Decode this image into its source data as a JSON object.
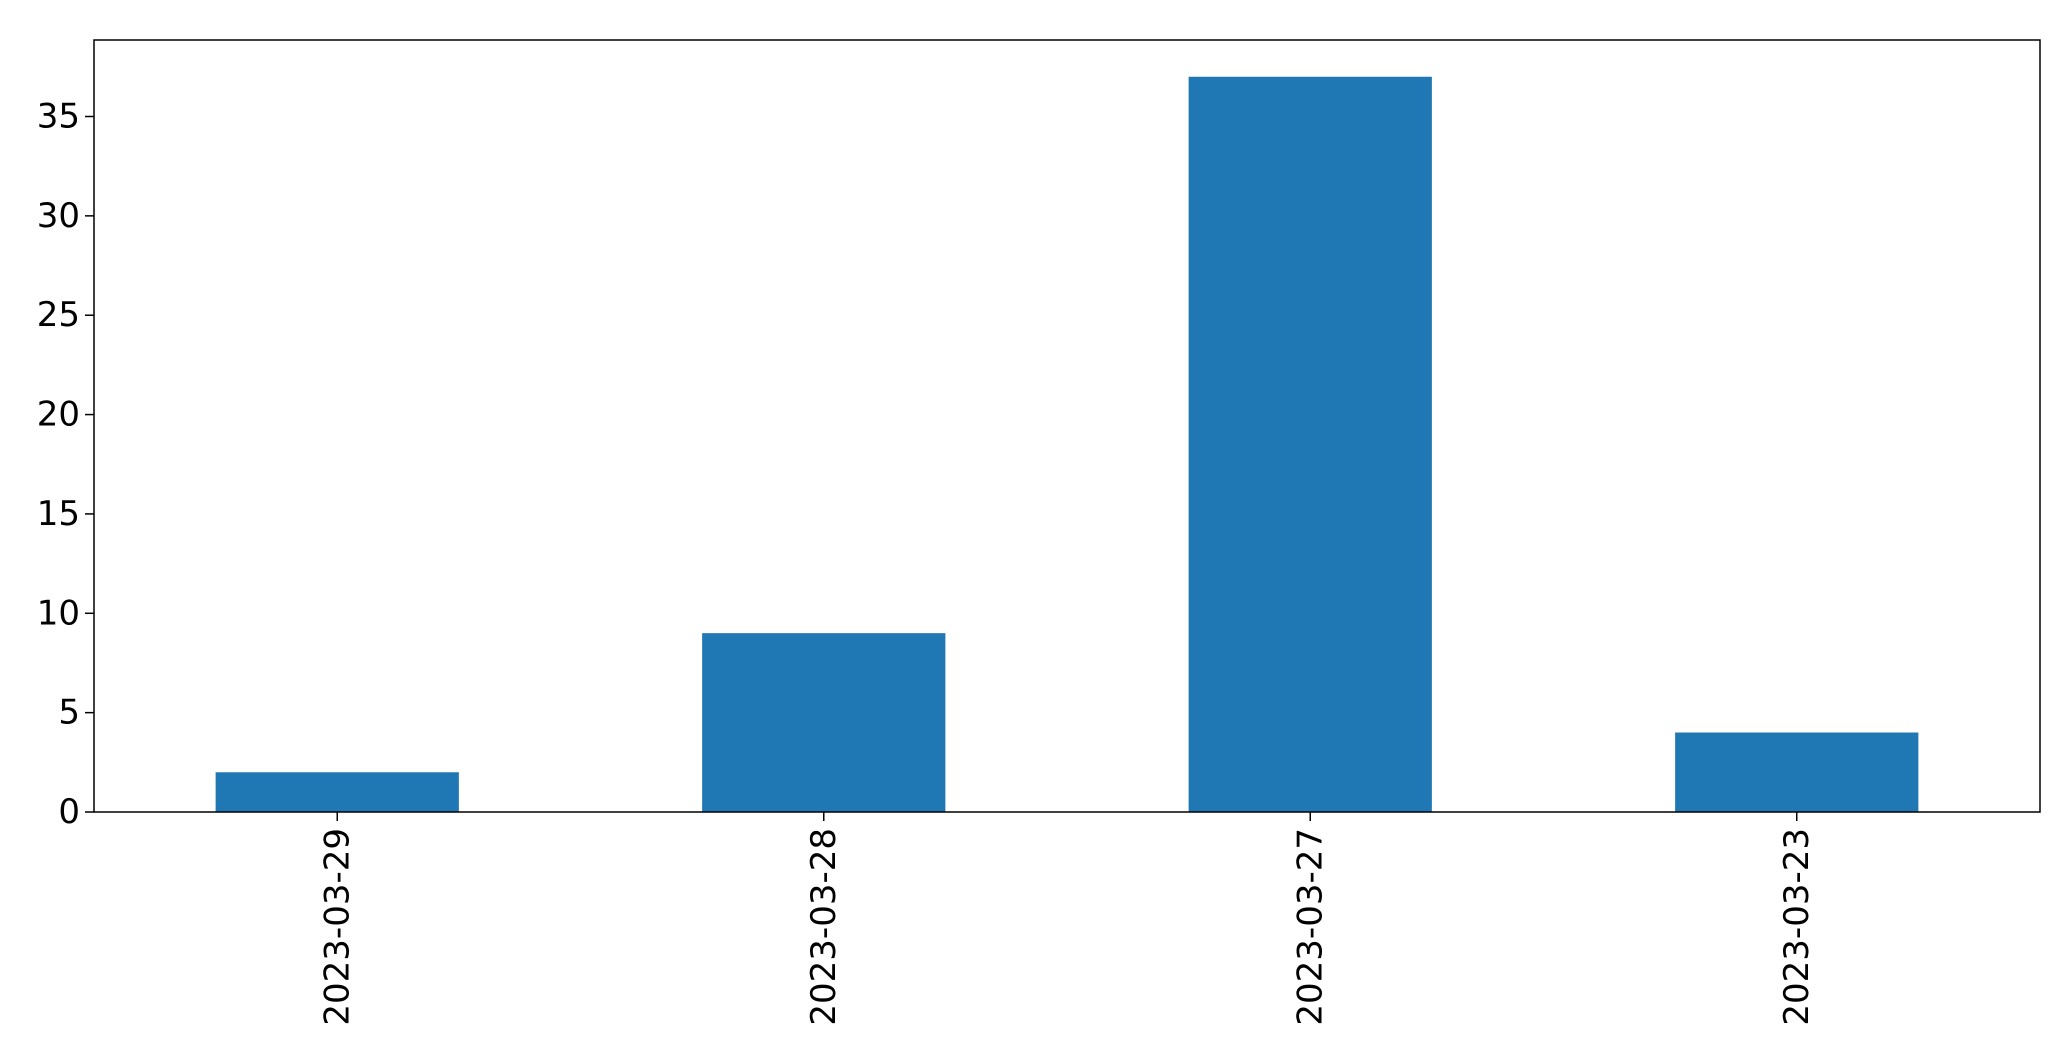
{
  "chart_data": {
    "type": "bar",
    "title": "",
    "xlabel": "",
    "ylabel": "",
    "categories": [
      "2023-03-29",
      "2023-03-28",
      "2023-03-27",
      "2023-03-23"
    ],
    "values": [
      2,
      9,
      37,
      4
    ],
    "ylim": [
      0,
      38.85
    ],
    "yticks": [
      0,
      5,
      10,
      15,
      20,
      25,
      30,
      35
    ],
    "bar_color": "#1f77b4",
    "grid": false,
    "legend": "none",
    "x_tick_rotation": "vertical"
  }
}
